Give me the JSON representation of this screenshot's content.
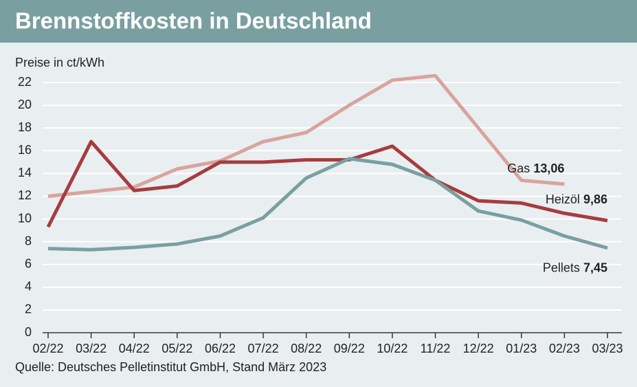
{
  "chart_data": {
    "type": "line",
    "title": "Brennstoffkosten in Deutschland",
    "y_label": "Preise in ct/kWh",
    "source": "Quelle: Deutsches Pelletinstitut GmbH, Stand März 2023",
    "categories": [
      "02/22",
      "03/22",
      "04/22",
      "05/22",
      "06/22",
      "07/22",
      "08/22",
      "09/22",
      "10/22",
      "11/22",
      "12/22",
      "01/23",
      "02/23",
      "03/23"
    ],
    "series": [
      {
        "name": "Gas",
        "color": "#d9a39d",
        "values": [
          12.0,
          12.4,
          12.8,
          14.4,
          15.1,
          16.8,
          17.6,
          20.0,
          22.2,
          22.6,
          18.0,
          13.4,
          13.06,
          null
        ],
        "value_labels": [
          null,
          null,
          null,
          null,
          null,
          null,
          null,
          null,
          null,
          null,
          null,
          null,
          "13,06",
          null
        ]
      },
      {
        "name": "Heizöl",
        "color": "#a63c3e",
        "values": [
          9.3,
          16.8,
          12.5,
          12.9,
          15.0,
          15.0,
          15.2,
          15.2,
          16.4,
          13.4,
          11.6,
          11.4,
          10.5,
          9.86
        ],
        "value_labels": [
          null,
          null,
          null,
          null,
          null,
          null,
          null,
          null,
          null,
          null,
          null,
          null,
          null,
          "9,86"
        ]
      },
      {
        "name": "Pellets",
        "color": "#7a9fa0",
        "values": [
          7.4,
          7.3,
          7.5,
          7.8,
          8.5,
          10.1,
          13.6,
          15.3,
          14.8,
          13.4,
          10.7,
          9.9,
          8.5,
          7.45
        ],
        "value_labels": [
          null,
          null,
          null,
          null,
          null,
          null,
          null,
          null,
          null,
          null,
          null,
          null,
          null,
          "7,45"
        ]
      }
    ],
    "ylim": [
      0,
      22
    ],
    "yticks": [
      0,
      2,
      4,
      6,
      8,
      10,
      12,
      14,
      16,
      18,
      20,
      22
    ],
    "grid": true
  }
}
